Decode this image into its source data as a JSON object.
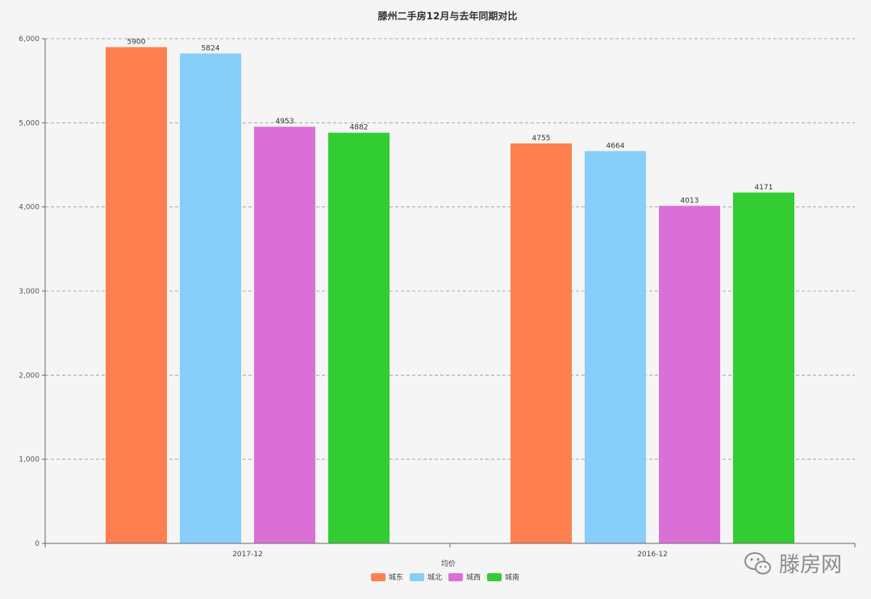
{
  "chart_data": {
    "type": "bar",
    "title": "滕州二手房12月与去年同期对比",
    "categories": [
      "2017-12",
      "2016-12"
    ],
    "series": [
      {
        "name": "城东",
        "values": [
          5900,
          4755
        ],
        "color": "#ff7f50"
      },
      {
        "name": "城北",
        "values": [
          5824,
          4664
        ],
        "color": "#87cefa"
      },
      {
        "name": "城西",
        "values": [
          4953,
          4013
        ],
        "color": "#da70d6"
      },
      {
        "name": "城南",
        "values": [
          4882,
          4171
        ],
        "color": "#32cd32"
      }
    ],
    "ylim": [
      0,
      6000
    ],
    "yticks": [
      0,
      1000,
      2000,
      3000,
      4000,
      5000,
      6000
    ],
    "ytick_labels": [
      "0",
      "1,000",
      "2,000",
      "3,000",
      "4,000",
      "5,000",
      "6,000"
    ],
    "grid": true,
    "legend_title": "均价",
    "legend_position": "bottom-center"
  },
  "watermark": {
    "text": "滕房网",
    "icon": "wechat-icon"
  }
}
